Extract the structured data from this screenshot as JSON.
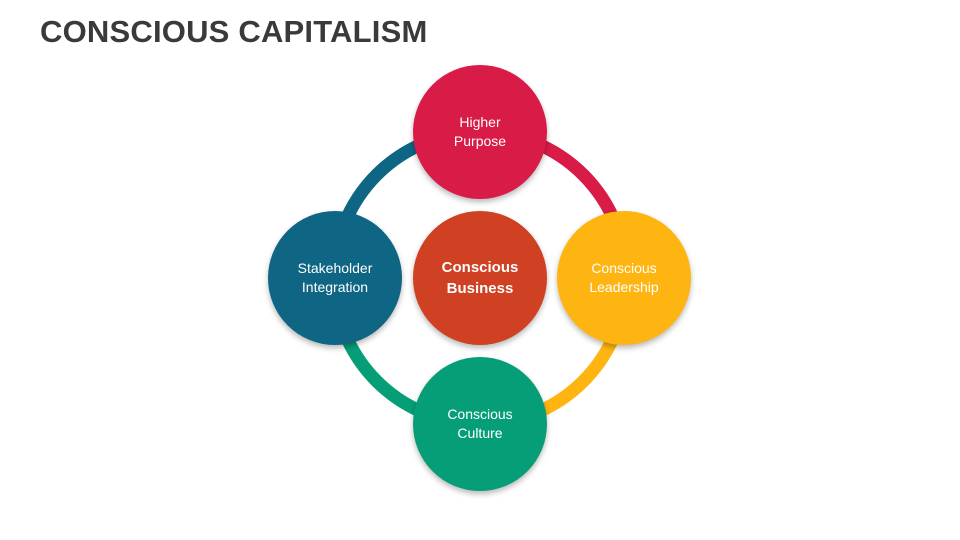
{
  "title": "CONSCIOUS CAPITALISM",
  "colors": {
    "title_text": "#3a3a3a",
    "higher_purpose": "#d81b47",
    "conscious_leadership": "#ffb511",
    "conscious_culture": "#069e77",
    "stakeholder_integration": "#0f6584",
    "conscious_business": "#d04022",
    "node_text": "#ffffff"
  },
  "diagram": {
    "center": {
      "line1": "Conscious",
      "line2": "Business"
    },
    "top": {
      "line1": "Higher",
      "line2": "Purpose"
    },
    "right": {
      "line1": "Conscious",
      "line2": "Leadership"
    },
    "bottom": {
      "line1": "Conscious",
      "line2": "Culture"
    },
    "left": {
      "line1": "Stakeholder",
      "line2": "Integration"
    }
  }
}
